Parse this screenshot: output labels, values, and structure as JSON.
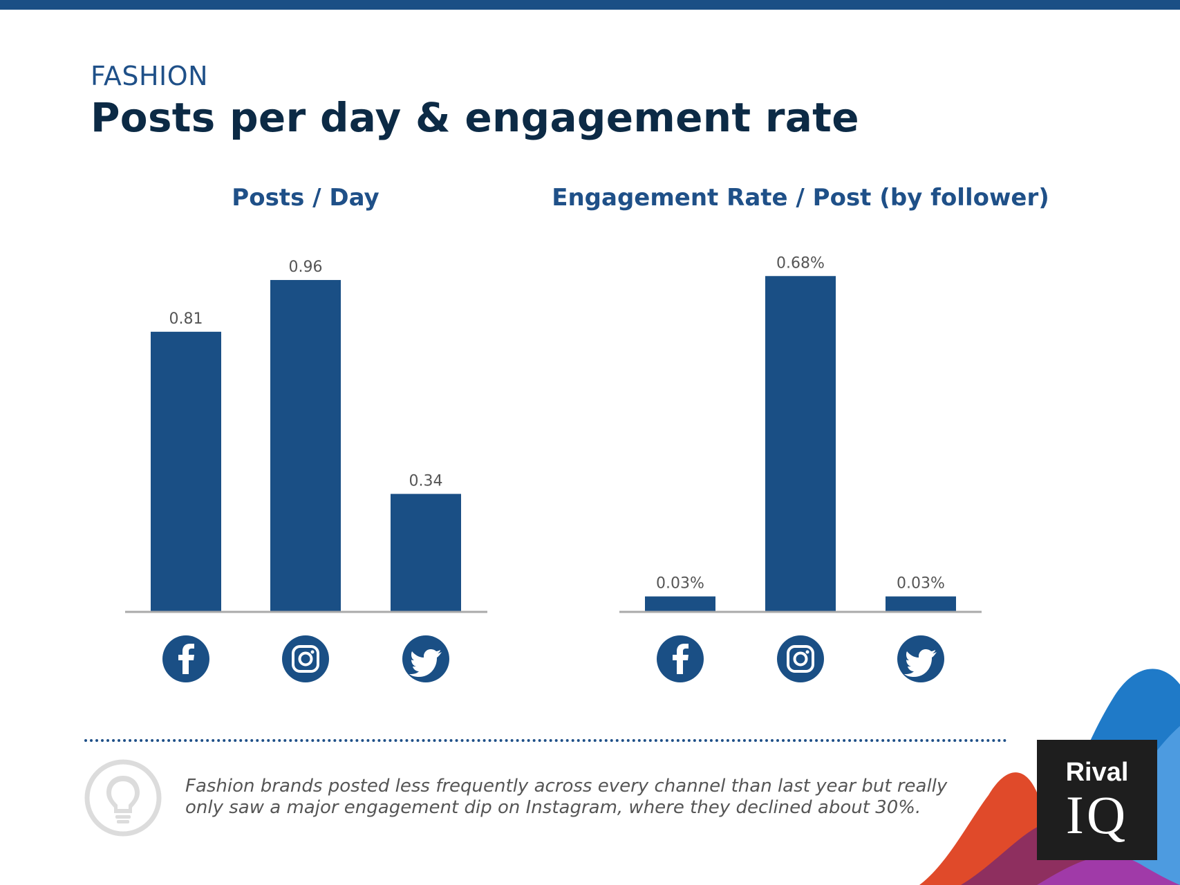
{
  "header": {
    "eyebrow": "FASHION",
    "title": "Posts per day & engagement rate"
  },
  "colors": {
    "bar": "#1a4f85",
    "accent": "#1f5088",
    "title": "#0c2a45",
    "text_muted": "#555555",
    "axis": "#aaaaaa"
  },
  "chart_data": [
    {
      "type": "bar",
      "title": "Posts / Day",
      "categories": [
        "Facebook",
        "Instagram",
        "Twitter"
      ],
      "category_icons": [
        "facebook-icon",
        "instagram-icon",
        "twitter-icon"
      ],
      "values": [
        0.81,
        0.96,
        0.34
      ],
      "value_labels": [
        "0.81",
        "0.96",
        "0.34"
      ],
      "ylim": [
        0,
        1.0
      ],
      "xlabel": "",
      "ylabel": "",
      "grid": false
    },
    {
      "type": "bar",
      "title": "Engagement Rate / Post (by follower)",
      "categories": [
        "Facebook",
        "Instagram",
        "Twitter"
      ],
      "category_icons": [
        "facebook-icon",
        "instagram-icon",
        "twitter-icon"
      ],
      "values": [
        0.03,
        0.68,
        0.03
      ],
      "value_labels": [
        "0.03%",
        "0.68%",
        "0.03%"
      ],
      "ylim": [
        0,
        0.7
      ],
      "xlabel": "",
      "ylabel": "",
      "grid": false
    }
  ],
  "insight": {
    "text": "Fashion brands posted less frequently across every channel than last year but really only saw a major engagement dip on Instagram, where they declined about 30%.",
    "icon": "lightbulb-icon"
  },
  "logo": {
    "line1": "Rival",
    "line2": "IQ"
  }
}
